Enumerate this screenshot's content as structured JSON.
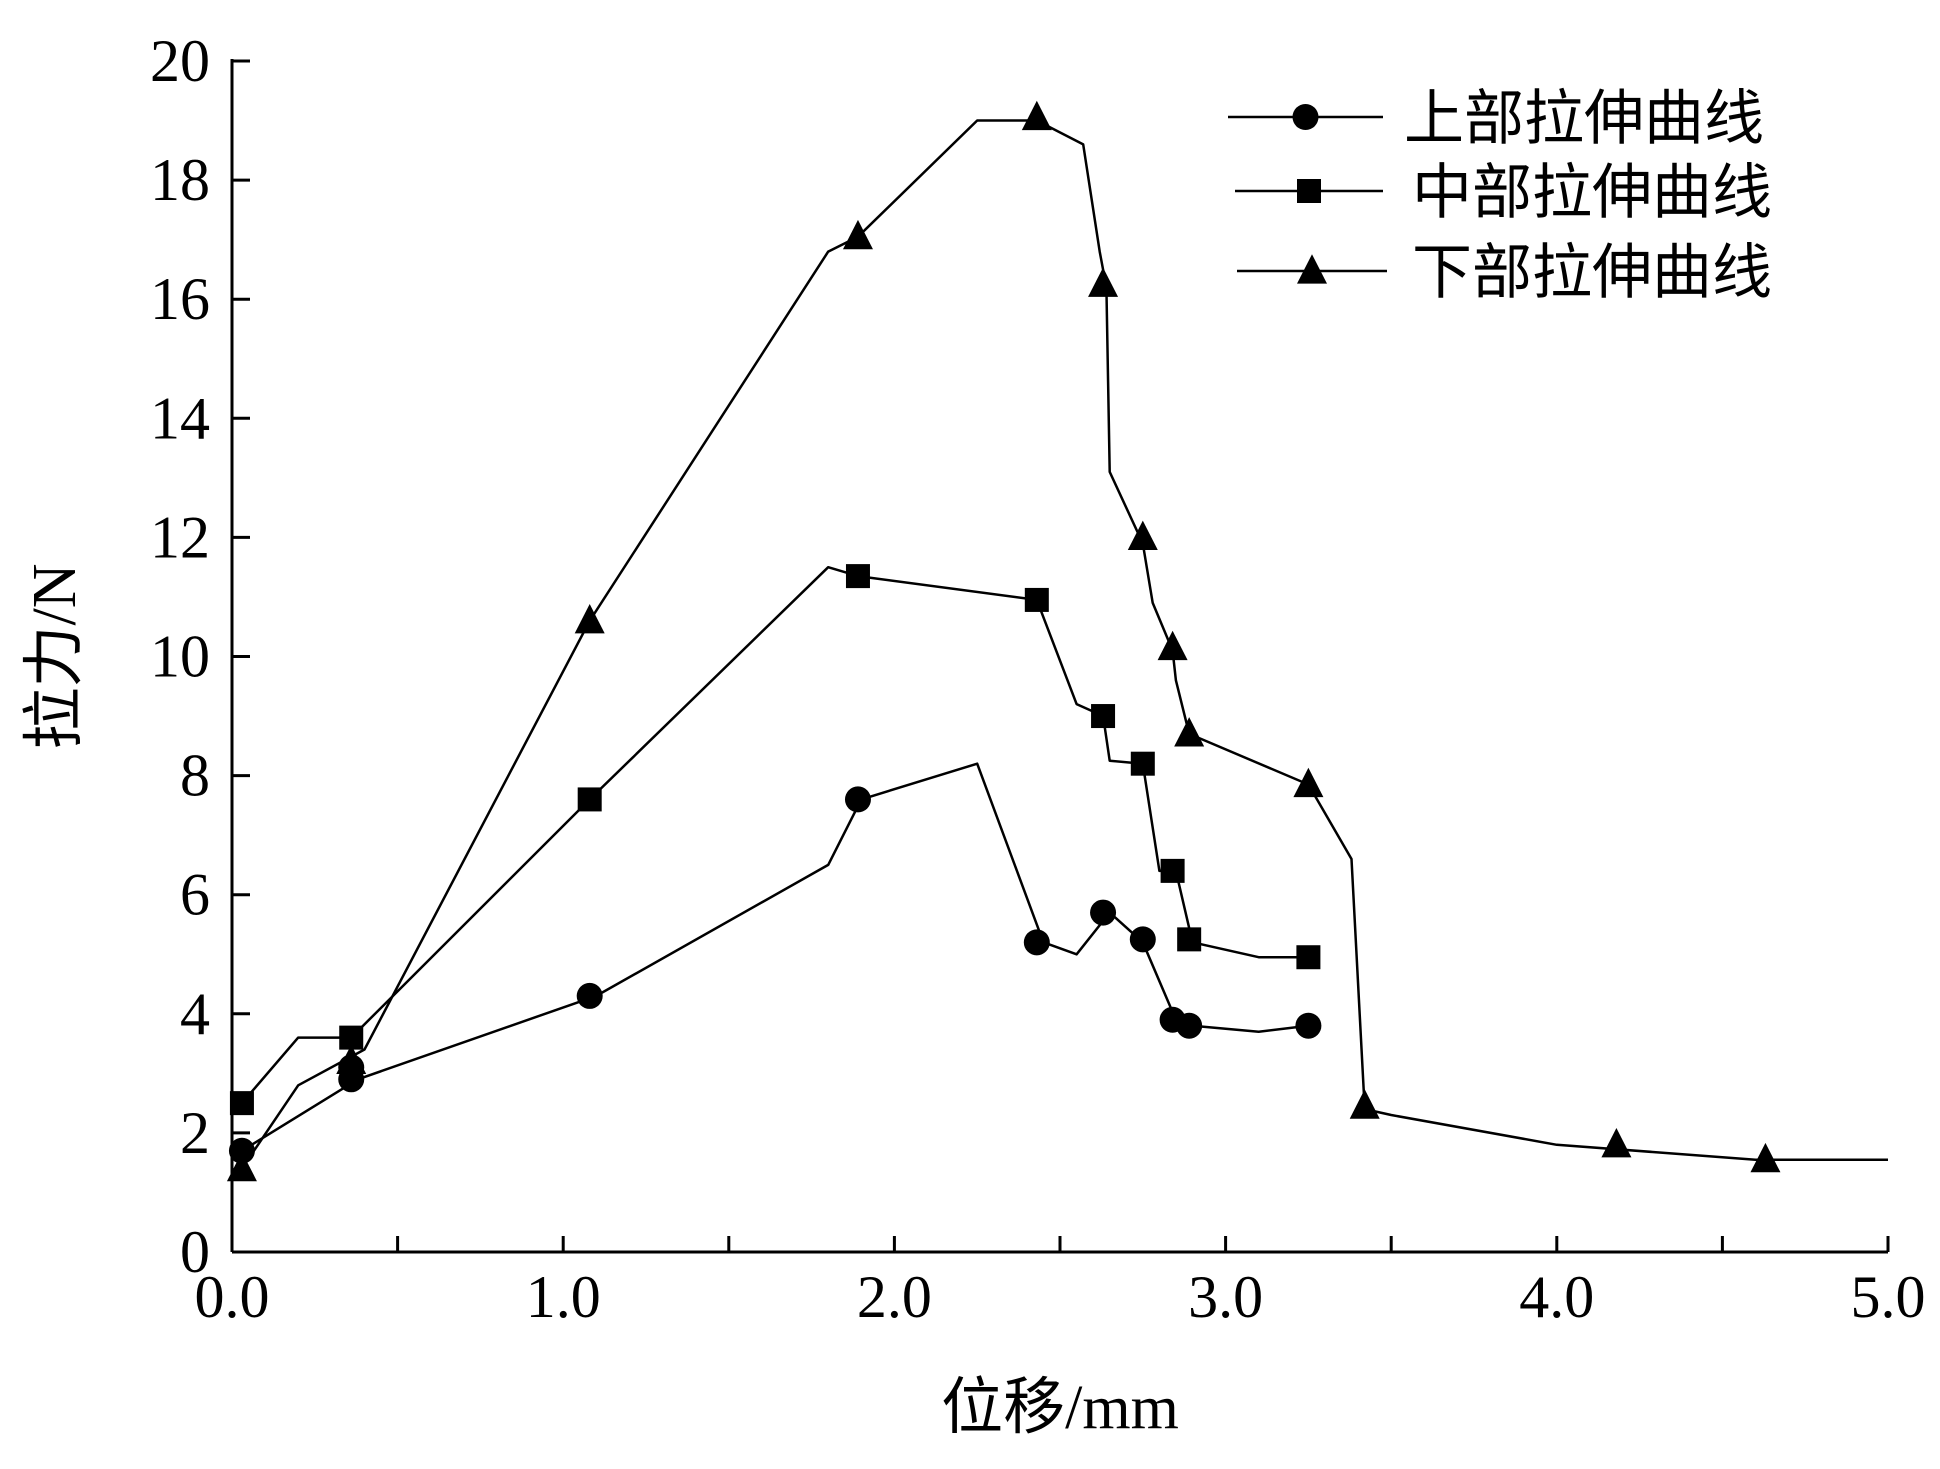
{
  "chart_data": {
    "type": "line",
    "xlabel": "位移/mm",
    "ylabel": "拉力/N",
    "xlim": [
      0,
      5
    ],
    "ylim": [
      0,
      20
    ],
    "x_ticks": [
      0,
      0.5,
      1,
      1.5,
      2,
      2.5,
      3,
      3.5,
      4,
      4.5,
      5
    ],
    "x_tick_labels": [
      "0.0",
      "1.0",
      "2.0",
      "3.0",
      "4.0",
      "5.0"
    ],
    "x_tick_label_values": [
      0,
      1,
      2,
      3,
      4,
      5
    ],
    "y_ticks": [
      0,
      2,
      4,
      6,
      8,
      10,
      12,
      14,
      16,
      18,
      20
    ],
    "y_tick_labels": [
      "0",
      "2",
      "4",
      "6",
      "8",
      "10",
      "12",
      "14",
      "16",
      "18",
      "20"
    ],
    "grid": false,
    "legend_position": "top-right",
    "color": "#000000",
    "series": [
      {
        "name": "上部拉伸曲线",
        "marker": "circle",
        "line": [
          [
            0.03,
            1.7
          ],
          [
            0.38,
            2.9
          ],
          [
            1.1,
            4.3
          ],
          [
            1.8,
            6.5
          ],
          [
            1.9,
            7.6
          ],
          [
            2.25,
            8.2
          ],
          [
            2.45,
            5.2
          ],
          [
            2.55,
            5.0
          ],
          [
            2.65,
            5.7
          ],
          [
            2.75,
            5.2
          ],
          [
            2.85,
            3.9
          ],
          [
            2.9,
            3.8
          ],
          [
            3.1,
            3.7
          ],
          [
            3.25,
            3.8
          ]
        ],
        "markers": [
          [
            0.03,
            1.7
          ],
          [
            0.36,
            3.1
          ],
          [
            0.36,
            2.9
          ],
          [
            1.08,
            4.3
          ],
          [
            1.89,
            7.6
          ],
          [
            2.43,
            5.2
          ],
          [
            2.63,
            5.7
          ],
          [
            2.75,
            5.25
          ],
          [
            2.84,
            3.9
          ],
          [
            2.89,
            3.8
          ],
          [
            3.25,
            3.8
          ]
        ]
      },
      {
        "name": "中部拉伸曲线",
        "marker": "square",
        "line": [
          [
            0.03,
            2.5
          ],
          [
            0.2,
            3.6
          ],
          [
            0.36,
            3.6
          ],
          [
            1.08,
            7.6
          ],
          [
            1.8,
            11.5
          ],
          [
            1.89,
            11.35
          ],
          [
            2.43,
            10.95
          ],
          [
            2.55,
            9.2
          ],
          [
            2.63,
            9.0
          ],
          [
            2.65,
            8.25
          ],
          [
            2.75,
            8.2
          ],
          [
            2.8,
            6.4
          ],
          [
            2.85,
            6.4
          ],
          [
            2.9,
            5.2
          ],
          [
            3.1,
            4.95
          ],
          [
            3.25,
            4.95
          ]
        ],
        "markers": [
          [
            0.03,
            2.5
          ],
          [
            0.36,
            3.6
          ],
          [
            1.08,
            7.6
          ],
          [
            1.89,
            11.35
          ],
          [
            2.43,
            10.95
          ],
          [
            2.63,
            9.0
          ],
          [
            2.75,
            8.2
          ],
          [
            2.84,
            6.4
          ],
          [
            2.89,
            5.25
          ],
          [
            3.25,
            4.95
          ]
        ]
      },
      {
        "name": "下部拉伸曲线",
        "marker": "triangle",
        "line": [
          [
            0.03,
            1.4
          ],
          [
            0.2,
            2.8
          ],
          [
            0.4,
            3.4
          ],
          [
            1.08,
            10.6
          ],
          [
            1.8,
            16.8
          ],
          [
            1.89,
            17.05
          ],
          [
            2.25,
            19.0
          ],
          [
            2.43,
            19.0
          ],
          [
            2.57,
            18.6
          ],
          [
            2.62,
            16.8
          ],
          [
            2.64,
            16.2
          ],
          [
            2.65,
            13.1
          ],
          [
            2.75,
            11.9
          ],
          [
            2.78,
            10.9
          ],
          [
            2.84,
            10.1
          ],
          [
            2.85,
            9.6
          ],
          [
            2.89,
            8.7
          ],
          [
            3.25,
            7.85
          ],
          [
            3.38,
            6.6
          ],
          [
            3.42,
            2.4
          ],
          [
            3.5,
            2.3
          ],
          [
            4.0,
            1.8
          ],
          [
            4.6,
            1.55
          ],
          [
            5.0,
            1.55
          ]
        ],
        "markers": [
          [
            0.03,
            1.4
          ],
          [
            0.36,
            3.2
          ],
          [
            1.08,
            10.6
          ],
          [
            1.89,
            17.05
          ],
          [
            2.43,
            19.05
          ],
          [
            2.63,
            16.25
          ],
          [
            2.75,
            12.0
          ],
          [
            2.84,
            10.15
          ],
          [
            2.89,
            8.7
          ],
          [
            3.25,
            7.85
          ],
          [
            3.42,
            2.45
          ],
          [
            4.18,
            1.8
          ],
          [
            4.63,
            1.55
          ]
        ]
      }
    ]
  }
}
